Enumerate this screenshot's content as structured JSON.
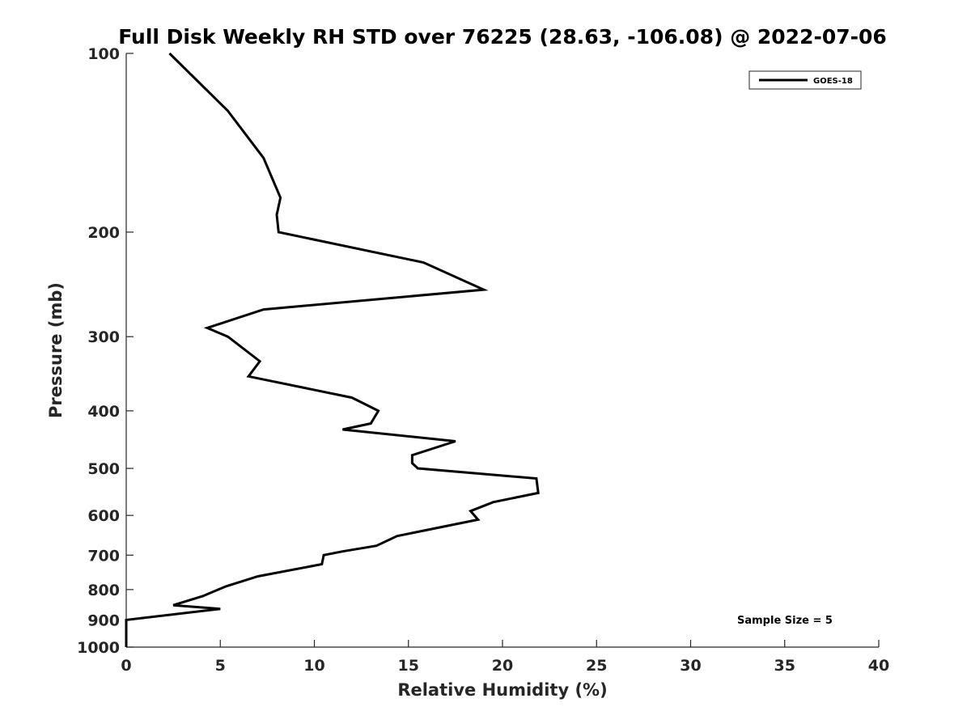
{
  "chart_data": {
    "type": "line",
    "title": "Full Disk Weekly RH STD over 76225 (28.63, -106.08) @ 2022-07-06",
    "xlabel": "Relative Humidity (%)",
    "ylabel": "Pressure (mb)",
    "xlim": [
      0,
      40
    ],
    "ylim": [
      100,
      1000
    ],
    "y_scale": "log",
    "y_reversed": true,
    "grid": false,
    "legend_position": "top-right",
    "x_ticks": [
      "0",
      "5",
      "10",
      "15",
      "20",
      "25",
      "30",
      "35",
      "40"
    ],
    "y_ticks": [
      "100",
      "200",
      "300",
      "400",
      "500",
      "600",
      "700",
      "800",
      "900",
      "1000"
    ],
    "line_color": "#000000",
    "series": [
      {
        "name": "GOES-18",
        "x": [
          2.3,
          5.4,
          7.3,
          8.2,
          8.0,
          8.1,
          15.8,
          19.0,
          7.3,
          4.3,
          5.4,
          7.1,
          6.5,
          12.0,
          13.4,
          13.0,
          11.5,
          17.5,
          15.2,
          15.2,
          15.5,
          21.8,
          21.9,
          19.5,
          18.3,
          18.7,
          14.4,
          13.3,
          11.5,
          10.5,
          10.4,
          7.0,
          5.3,
          4.1,
          2.5,
          5.0,
          0.0,
          0.0,
          0.0
        ],
        "y": [
          100,
          125,
          150,
          175,
          187,
          200,
          225,
          250,
          270,
          290,
          300,
          330,
          350,
          380,
          400,
          420,
          430,
          450,
          475,
          490,
          500,
          520,
          550,
          570,
          590,
          610,
          650,
          675,
          690,
          700,
          725,
          760,
          790,
          820,
          850,
          862,
          900,
          950,
          1000
        ]
      }
    ],
    "annotations": [
      "Sample Size = 5"
    ]
  }
}
